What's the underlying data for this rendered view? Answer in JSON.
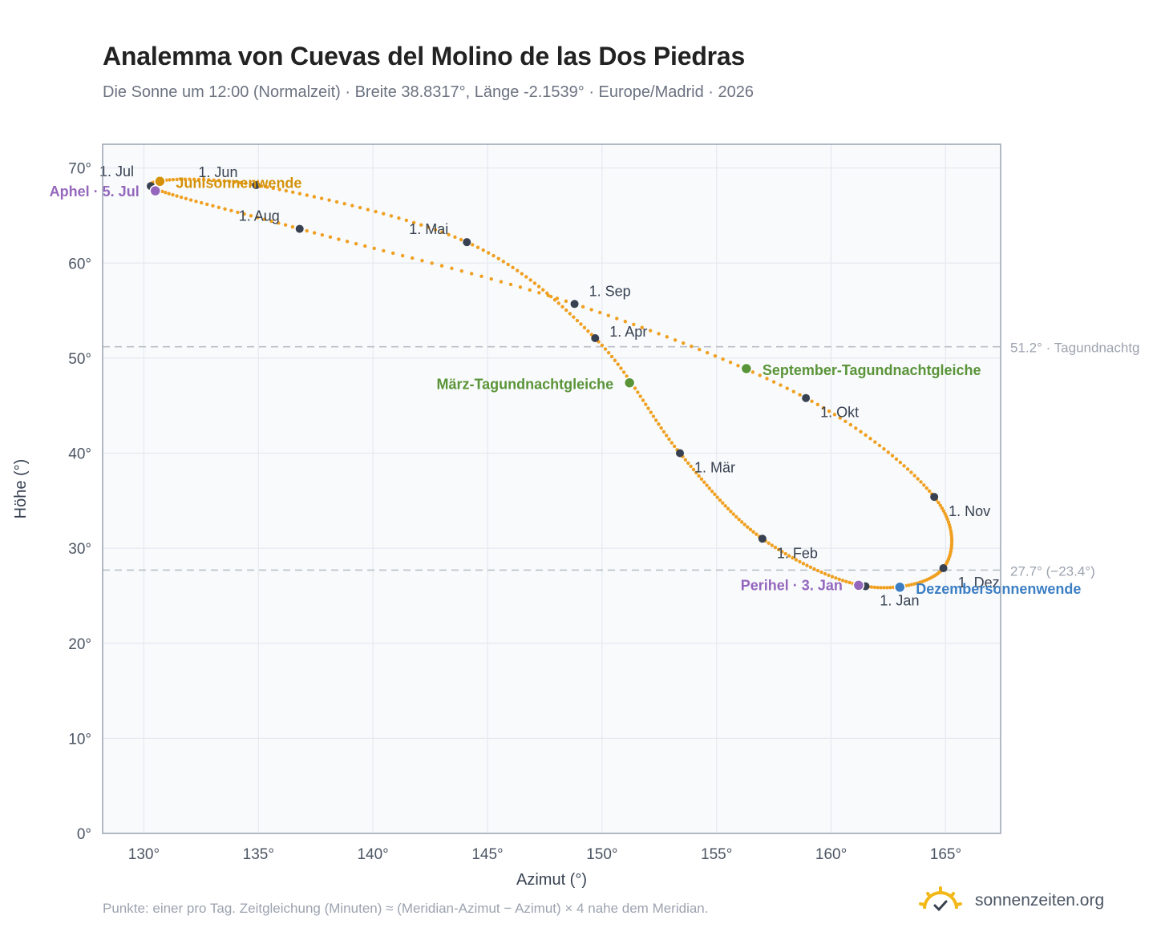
{
  "header": {
    "title": "Analemma von Cuevas del Molino de las Dos Piedras",
    "subtitle": "Die Sonne um 12:00 (Normalzeit) · Breite 38.8317°, Länge -2.1539° · Europe/Madrid · 2026"
  },
  "footnote": "Punkte: einer pro Tag. Zeitgleichung (Minuten) ≈ (Meridian-Azimut − Azimut) × 4 nahe dem Meridian.",
  "brand": {
    "name": "sonnenzeiten.org",
    "icon": "sun-check-icon",
    "color": "#f2b81a"
  },
  "colors": {
    "curve": "#f0a020",
    "month_point": "#374151",
    "solstice_june": "#d4920a",
    "solstice_december": "#3b7ec4",
    "equinox": "#5a9438",
    "apsis": "#9467bd",
    "reference_line": "#b8c0c8",
    "plot_background": "#f8fafc",
    "grid": "#e5e9ef"
  },
  "chart_data": {
    "type": "scatter",
    "xlabel": "Azimut (°)",
    "ylabel": "Höhe (°)",
    "xlim": [
      128.2,
      167.4
    ],
    "ylim": [
      0,
      72.5
    ],
    "xticks": [
      130,
      135,
      140,
      145,
      150,
      155,
      160,
      165
    ],
    "yticks": [
      0,
      10,
      20,
      30,
      40,
      50,
      60,
      70
    ],
    "tick_suffix": "°",
    "grid": true,
    "legend": "none",
    "reference_lines": [
      {
        "y": 51.2,
        "label": "51.2° · Tagundnachtg"
      },
      {
        "y": 27.7,
        "label": "27.7° (−23.4°)"
      }
    ],
    "series": [
      {
        "points": [
          {
            "date": "1. Jan",
            "x": 161.5,
            "y": 26.0
          },
          {
            "date": "1. Feb",
            "x": 157.0,
            "y": 31.0
          },
          {
            "date": "1. Mär",
            "x": 153.4,
            "y": 40.0
          },
          {
            "date": "1. Apr",
            "x": 149.7,
            "y": 52.1
          },
          {
            "date": "1. Mai",
            "x": 144.1,
            "y": 62.2
          },
          {
            "date": "1. Jun",
            "x": 134.9,
            "y": 68.2
          },
          {
            "date": "1. Jul",
            "x": 130.3,
            "y": 68.1
          },
          {
            "date": "1. Aug",
            "x": 136.8,
            "y": 63.6
          },
          {
            "date": "1. Sep",
            "x": 148.8,
            "y": 55.7
          },
          {
            "date": "1. Okt",
            "x": 158.9,
            "y": 45.8
          },
          {
            "date": "1. Nov",
            "x": 164.5,
            "y": 35.4
          },
          {
            "date": "1. Dez",
            "x": 164.9,
            "y": 27.9
          }
        ]
      }
    ],
    "events": [
      {
        "label": "Junisonnenwende",
        "x": 130.7,
        "y": 68.6,
        "kind": "solstice_june"
      },
      {
        "label": "Aphel · 5. Jul",
        "x": 130.5,
        "y": 67.6,
        "kind": "apsis"
      },
      {
        "label": "März-Tagundnachtgleiche",
        "x": 151.2,
        "y": 47.4,
        "kind": "equinox"
      },
      {
        "label": "September-Tagundnachtgleiche",
        "x": 156.3,
        "y": 48.9,
        "kind": "equinox"
      },
      {
        "label": "Perihel · 3. Jan",
        "x": 161.2,
        "y": 26.1,
        "kind": "apsis"
      },
      {
        "label": "Dezembersonnenwende",
        "x": 163.0,
        "y": 25.9,
        "kind": "solstice_december"
      }
    ]
  }
}
